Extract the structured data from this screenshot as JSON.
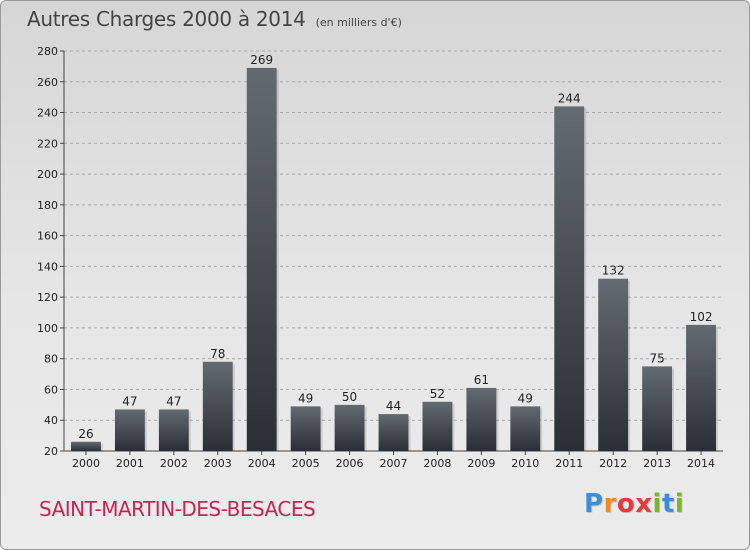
{
  "header": {
    "title": "Autres Charges 2000 à 2014",
    "unit": "(en milliers d'€)"
  },
  "commune": "SAINT-MARTIN-DES-BESACES",
  "logo": {
    "text": "Proxiti",
    "colors": [
      "#3a8fd6",
      "#f08a1c",
      "#e33b3b",
      "#e33b3b",
      "#7ab52e",
      "#3a8fd6",
      "#7ab52e"
    ]
  },
  "colors": {
    "bar_top": "#646a71",
    "bar_bottom": "#2a2f35",
    "commune": "#c8244f"
  },
  "chart_data": {
    "type": "bar",
    "title": "Autres Charges 2000 à 2014",
    "subtitle": "(en milliers d'€)",
    "xlabel": "",
    "ylabel": "",
    "categories": [
      "2000",
      "2001",
      "2002",
      "2003",
      "2004",
      "2005",
      "2006",
      "2007",
      "2008",
      "2009",
      "2010",
      "2011",
      "2012",
      "2013",
      "2014"
    ],
    "values": [
      26,
      47,
      47,
      78,
      269,
      49,
      50,
      44,
      52,
      61,
      49,
      244,
      132,
      75,
      102
    ],
    "ylim": [
      20,
      280
    ],
    "yticks": [
      20,
      40,
      60,
      80,
      100,
      120,
      140,
      160,
      180,
      200,
      220,
      240,
      260,
      280
    ],
    "grid": true,
    "legend": "none"
  }
}
